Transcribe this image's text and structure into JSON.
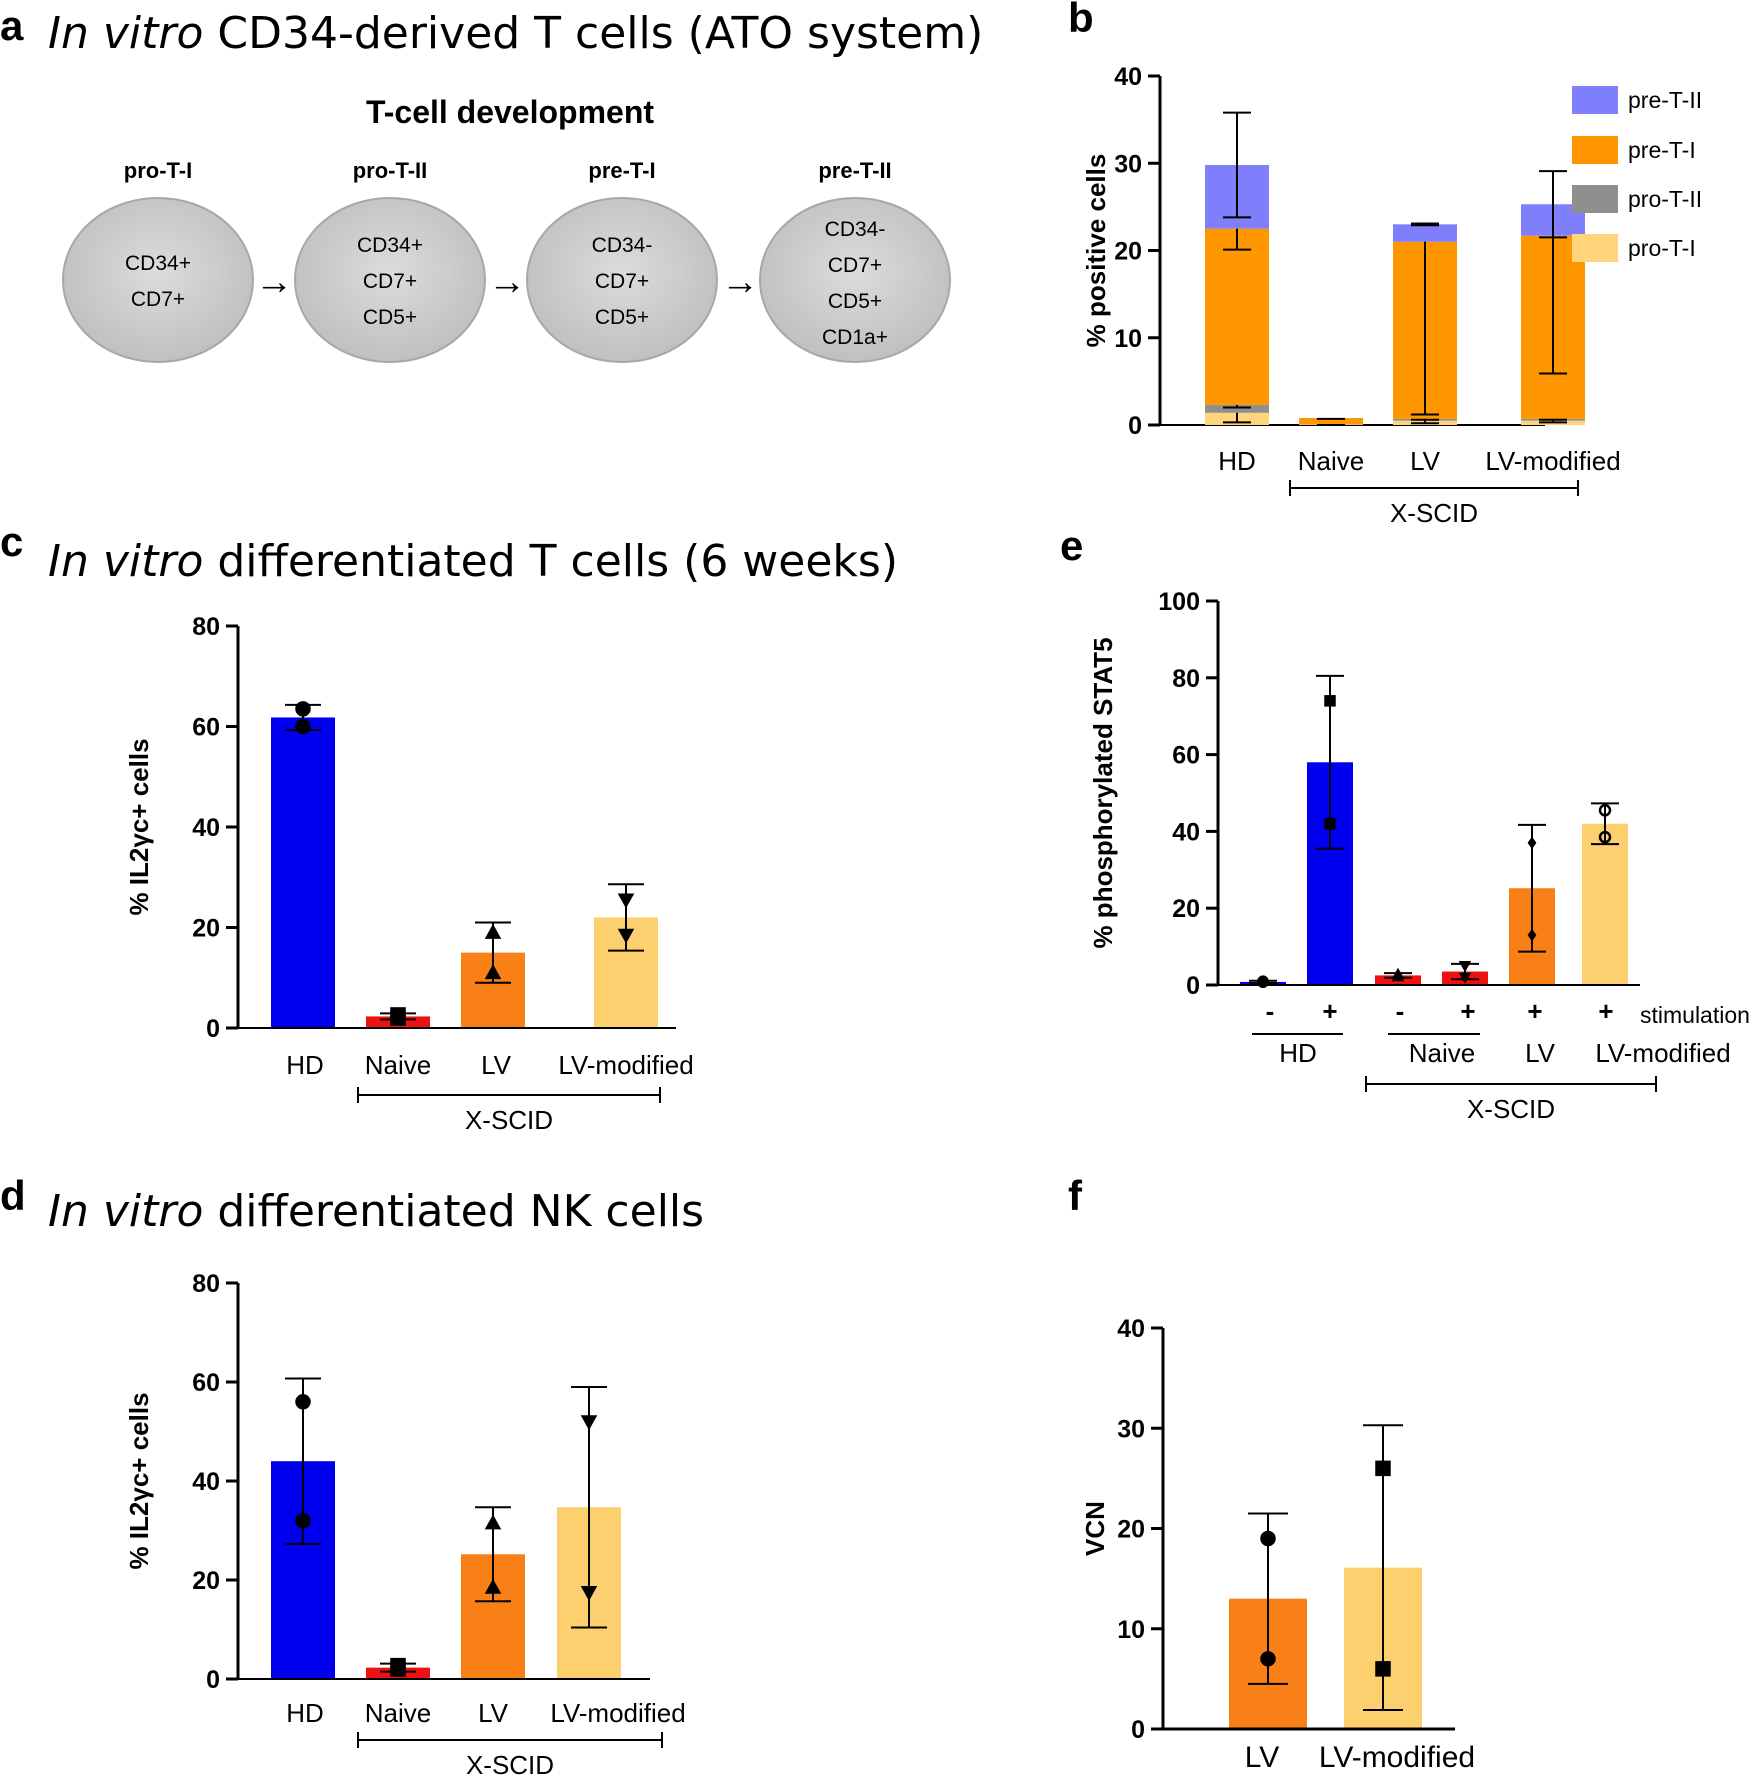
{
  "panels": {
    "a": {
      "label": "a",
      "title_italic": "In vitro",
      "title_rest": "CD34-derived T cells (ATO system)"
    },
    "b": {
      "label": "b"
    },
    "c": {
      "label": "c",
      "title_italic": "In vitro",
      "title_rest": "differentiated T cells (6 weeks)"
    },
    "d": {
      "label": "d",
      "title_italic": "In vitro",
      "title_rest": "differentiated NK cells"
    },
    "e": {
      "label": "e"
    },
    "f": {
      "label": "f"
    }
  },
  "diagram": {
    "title": "T-cell development",
    "stages": [
      {
        "name": "pro-T-I",
        "markers": [
          "CD34+",
          "CD7+"
        ]
      },
      {
        "name": "pro-T-II",
        "markers": [
          "CD34+",
          "CD7+",
          "CD5+"
        ]
      },
      {
        "name": "pre-T-I",
        "markers": [
          "CD34-",
          "CD7+",
          "CD5+"
        ]
      },
      {
        "name": "pre-T-II",
        "markers": [
          "CD34-",
          "CD7+",
          "CD5+",
          "CD1a+"
        ]
      }
    ],
    "arrow": "→"
  },
  "colors": {
    "hd": "#0000ee",
    "naive": "#ee1111",
    "lv": "#f88016",
    "lvmod": "#fdd06f",
    "preTII": "#7f7ffb",
    "preTI": "#ff9600",
    "proTII": "#8f8f8f",
    "proTI": "#ffd47a",
    "cell_fill": "#d3d3d3"
  },
  "chart_data": [
    {
      "id": "b",
      "type": "bar",
      "stacked": true,
      "categories": [
        "HD",
        "Naive",
        "LV",
        "LV-modified"
      ],
      "group_label": "X-SCID",
      "ylabel": "% positive cells",
      "ylim": [
        0,
        40
      ],
      "yticks": [
        0,
        10,
        20,
        30,
        40
      ],
      "legend": [
        "pre-T-II",
        "pre-T-I",
        "pro-T-II",
        "pro-T-I"
      ],
      "series": [
        {
          "name": "pro-T-I",
          "values": [
            1.4,
            0.1,
            0.5,
            0.5
          ],
          "errors": [
            1.1,
            0.1,
            0.3,
            0.2
          ]
        },
        {
          "name": "pro-T-II",
          "values": [
            0.9,
            0.0,
            0.2,
            0.2
          ],
          "errors": [
            0.3,
            0.0,
            0.1,
            0.1
          ]
        },
        {
          "name": "pre-T-I",
          "values": [
            20.2,
            0.7,
            20.3,
            21.0
          ],
          "errors": [
            2.4,
            0.1,
            19.8,
            15.8
          ]
        },
        {
          "name": "pre-T-II",
          "values": [
            7.3,
            0.0,
            2.0,
            3.6
          ],
          "errors": [
            6.0,
            0.0,
            0.1,
            3.8
          ]
        }
      ]
    },
    {
      "id": "c",
      "type": "bar",
      "categories": [
        "HD",
        "Naive",
        "LV",
        "LV-modified"
      ],
      "group_label": "X-SCID",
      "ylabel": "% IL2γc+ cells",
      "ylim": [
        0,
        80
      ],
      "yticks": [
        0,
        20,
        40,
        60,
        80
      ],
      "values": [
        61.8,
        2.3,
        15.0,
        22.0
      ],
      "errors": [
        2.5,
        0.6,
        6.0,
        6.6
      ],
      "points": [
        [
          63.5,
          60.0
        ],
        [
          2.0,
          2.6
        ],
        [
          19.0,
          11.0
        ],
        [
          25.5,
          18.5
        ]
      ],
      "markers": [
        "circle",
        "square",
        "triangle",
        "triangle-down"
      ]
    },
    {
      "id": "d",
      "type": "bar",
      "categories": [
        "HD",
        "Naive",
        "LV",
        "LV-modified"
      ],
      "group_label": "X-SCID",
      "ylabel": "% IL2γc+ cells",
      "ylim": [
        0,
        80
      ],
      "yticks": [
        0,
        20,
        40,
        60,
        80
      ],
      "values": [
        44.0,
        2.3,
        25.2,
        34.7
      ],
      "errors": [
        16.7,
        0.8,
        9.5,
        24.3
      ],
      "points": [
        [
          56.0,
          32.0
        ],
        [
          2.0,
          2.7
        ],
        [
          31.5,
          18.5
        ],
        [
          52.0,
          17.5
        ]
      ],
      "markers": [
        "circle",
        "square",
        "triangle",
        "triangle-down"
      ]
    },
    {
      "id": "e",
      "type": "bar",
      "categories": [
        "HD -",
        "HD +",
        "Naive -",
        "Naive +",
        "LV +",
        "LV-modified +"
      ],
      "stim_signs": [
        "-",
        "+",
        "-",
        "+",
        "+",
        "+"
      ],
      "stim_label": "stimulation",
      "group_labels": [
        "HD",
        "Naive",
        "LV",
        "LV-modified"
      ],
      "group_label": "X-SCID",
      "ylabel": "% phosphorylated STAT5",
      "ylim": [
        0,
        100
      ],
      "yticks": [
        0,
        20,
        40,
        60,
        80,
        100
      ],
      "values": [
        0.8,
        58.0,
        2.5,
        3.5,
        25.2,
        42.0
      ],
      "errors": [
        0.3,
        22.5,
        0.6,
        2.0,
        16.5,
        5.3
      ],
      "points": [
        [
          0.7,
          1.0
        ],
        [
          74.0,
          42.0
        ],
        [
          2.8,
          2.2
        ],
        [
          5.0,
          2.0
        ],
        [
          37.0,
          13.0
        ],
        [
          45.5,
          38.5
        ]
      ],
      "markers": [
        "circle",
        "square",
        "triangle",
        "triangle-down",
        "diamond",
        "circle-open"
      ]
    },
    {
      "id": "f",
      "type": "bar",
      "categories": [
        "LV",
        "LV-modified"
      ],
      "ylabel": "VCN",
      "ylim": [
        0,
        40
      ],
      "yticks": [
        0,
        10,
        20,
        30,
        40
      ],
      "values": [
        13.0,
        16.1
      ],
      "errors": [
        8.5,
        14.2
      ],
      "points": [
        [
          19.0,
          7.0
        ],
        [
          26.0,
          6.0
        ]
      ],
      "markers": [
        "circle",
        "square"
      ]
    }
  ]
}
